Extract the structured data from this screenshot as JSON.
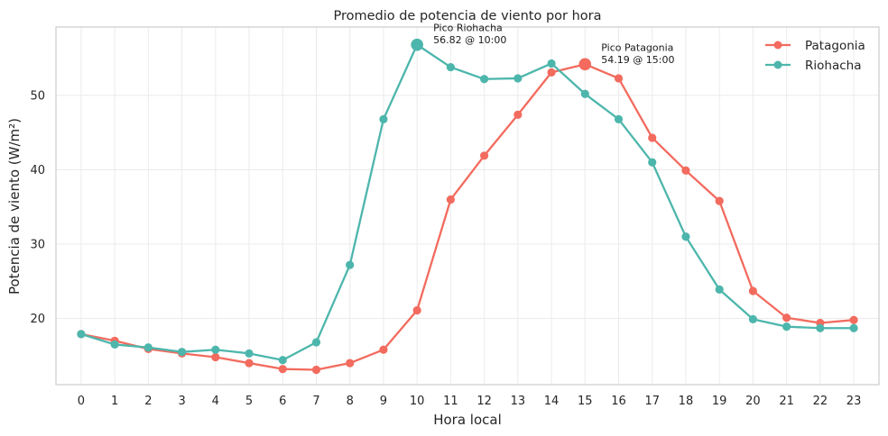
{
  "chart_data": {
    "type": "line",
    "title": "Promedio de potencia de viento por hora",
    "xlabel": "Hora local",
    "ylabel": "Potencia de viento (W/m²)",
    "x": [
      0,
      1,
      2,
      3,
      4,
      5,
      6,
      7,
      8,
      9,
      10,
      11,
      12,
      13,
      14,
      15,
      16,
      17,
      18,
      19,
      20,
      21,
      22,
      23
    ],
    "xticks": [
      "0",
      "1",
      "2",
      "3",
      "4",
      "5",
      "6",
      "7",
      "8",
      "9",
      "10",
      "11",
      "12",
      "13",
      "14",
      "15",
      "16",
      "17",
      "18",
      "19",
      "20",
      "21",
      "22",
      "23"
    ],
    "xlim": [
      -0.75,
      23.75
    ],
    "ylim": [
      11.1,
      59.2
    ],
    "yticks": [
      20,
      30,
      40,
      50
    ],
    "yticklabels": [
      "20",
      "30",
      "40",
      "50"
    ],
    "grid": true,
    "legend_position": "top-right",
    "series": [
      {
        "name": "Patagonia",
        "color": "#f26b5e",
        "values": [
          17.9,
          17.0,
          15.9,
          15.3,
          14.8,
          14.0,
          13.2,
          13.1,
          14.0,
          15.8,
          21.1,
          36.0,
          41.9,
          47.4,
          53.1,
          54.19,
          52.3,
          44.3,
          39.9,
          35.8,
          23.7,
          20.1,
          19.4,
          19.8
        ]
      },
      {
        "name": "Riohacha",
        "color": "#4db6ac",
        "values": [
          17.9,
          16.5,
          16.1,
          15.5,
          15.8,
          15.3,
          14.4,
          16.8,
          27.2,
          46.8,
          56.82,
          53.8,
          52.2,
          52.3,
          54.3,
          50.2,
          46.8,
          41.0,
          31.0,
          23.9,
          19.9,
          18.9,
          18.7,
          18.7
        ]
      }
    ],
    "annotations": [
      {
        "series": "Riohacha",
        "x": 10,
        "y": 56.82,
        "line1": "Pico Riohacha",
        "line2": "56.82 @ 10:00"
      },
      {
        "series": "Patagonia",
        "x": 15,
        "y": 54.19,
        "line1": "Pico Patagonia",
        "line2": "54.19 @ 15:00"
      }
    ]
  }
}
